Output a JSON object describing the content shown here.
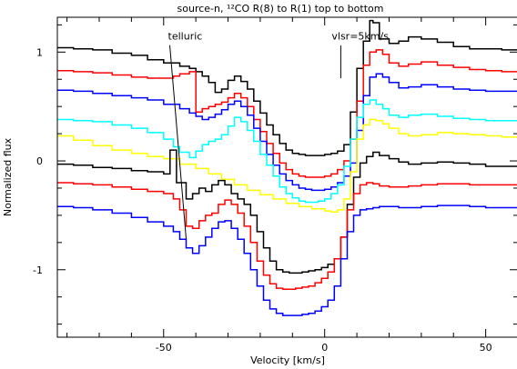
{
  "chart_data": {
    "type": "line",
    "title": "source-n, ¹²CO R(8) to R(1) top to bottom",
    "xlabel": "Velocity [km/s]",
    "ylabel": "Normalized flux",
    "xlim": [
      -83,
      60
    ],
    "ylim": [
      -1.62,
      1.32
    ],
    "x_ticks": [
      -50,
      0,
      50
    ],
    "y_ticks": [
      -1,
      0,
      1
    ],
    "grid": false,
    "legend": "none",
    "annotations": [
      {
        "text": "telluric",
        "x": -43,
        "y": 1.08,
        "arrow_to": [
          -43,
          -0.72
        ]
      },
      {
        "text": "vlsr=5km/s",
        "x": 5,
        "y": 1.08,
        "line_from_y": 1.06,
        "line_to_y": 0.76
      }
    ],
    "series": [
      {
        "color": "#000000",
        "x": [
          -83,
          -78,
          -72,
          -66,
          -60,
          -55,
          -50,
          -45,
          -42,
          -40,
          -38,
          -36,
          -34,
          -32,
          -30,
          -28,
          -26,
          -24,
          -22,
          -20,
          -18,
          -16,
          -14,
          -12,
          -10,
          -8,
          -6,
          -4,
          -2,
          0,
          2,
          4,
          6,
          8,
          10,
          12,
          14,
          15,
          17,
          20,
          23,
          26,
          30,
          35,
          40,
          45,
          50,
          55,
          60
        ],
        "y": [
          1.04,
          1.03,
          1.02,
          0.99,
          0.97,
          0.93,
          0.9,
          0.87,
          0.85,
          0.82,
          0.78,
          0.72,
          0.63,
          0.66,
          0.74,
          0.78,
          0.73,
          0.66,
          0.55,
          0.44,
          0.33,
          0.24,
          0.16,
          0.1,
          0.07,
          0.06,
          0.05,
          0.05,
          0.05,
          0.06,
          0.07,
          0.09,
          0.15,
          0.45,
          0.85,
          1.1,
          1.29,
          1.27,
          1.12,
          1.08,
          1.1,
          1.14,
          1.12,
          1.09,
          1.05,
          1.03,
          1.03,
          1.02,
          1.01
        ]
      },
      {
        "color": "#ff0000",
        "x": [
          -83,
          -78,
          -72,
          -66,
          -60,
          -55,
          -50,
          -47,
          -45,
          -42,
          -40,
          -38,
          -36,
          -34,
          -32,
          -30,
          -28,
          -26,
          -24,
          -22,
          -20,
          -18,
          -16,
          -14,
          -12,
          -10,
          -8,
          -6,
          -4,
          -2,
          0,
          2,
          4,
          6,
          8,
          10,
          12,
          14,
          16,
          18,
          20,
          23,
          26,
          30,
          35,
          40,
          45,
          50,
          55,
          60
        ],
        "y": [
          0.83,
          0.82,
          0.81,
          0.79,
          0.77,
          0.76,
          0.76,
          0.78,
          0.8,
          0.82,
          0.45,
          0.48,
          0.5,
          0.52,
          0.54,
          0.58,
          0.62,
          0.58,
          0.5,
          0.38,
          0.27,
          0.16,
          0.07,
          -0.02,
          -0.08,
          -0.12,
          -0.14,
          -0.15,
          -0.15,
          -0.15,
          -0.14,
          -0.12,
          -0.08,
          0.0,
          0.2,
          0.55,
          0.88,
          1.0,
          1.02,
          0.98,
          0.9,
          0.87,
          0.89,
          0.91,
          0.88,
          0.86,
          0.84,
          0.83,
          0.82,
          0.82
        ]
      },
      {
        "color": "#0000ff",
        "x": [
          -83,
          -78,
          -72,
          -66,
          -60,
          -55,
          -50,
          -45,
          -42,
          -40,
          -38,
          -36,
          -34,
          -32,
          -30,
          -28,
          -26,
          -24,
          -22,
          -20,
          -18,
          -16,
          -14,
          -12,
          -10,
          -8,
          -6,
          -4,
          -2,
          0,
          2,
          4,
          6,
          8,
          10,
          12,
          14,
          16,
          18,
          20,
          23,
          26,
          30,
          35,
          40,
          45,
          50,
          55,
          60
        ],
        "y": [
          0.65,
          0.64,
          0.62,
          0.6,
          0.58,
          0.56,
          0.52,
          0.48,
          0.44,
          0.41,
          0.38,
          0.4,
          0.43,
          0.47,
          0.52,
          0.55,
          0.5,
          0.42,
          0.3,
          0.18,
          0.06,
          -0.04,
          -0.12,
          -0.18,
          -0.22,
          -0.25,
          -0.26,
          -0.27,
          -0.27,
          -0.26,
          -0.24,
          -0.2,
          -0.14,
          -0.02,
          0.28,
          0.6,
          0.77,
          0.8,
          0.77,
          0.72,
          0.67,
          0.68,
          0.7,
          0.68,
          0.66,
          0.65,
          0.64,
          0.64,
          0.64
        ]
      },
      {
        "color": "#00ffff",
        "x": [
          -83,
          -78,
          -72,
          -66,
          -60,
          -55,
          -50,
          -47,
          -45,
          -42,
          -40,
          -38,
          -36,
          -34,
          -32,
          -30,
          -28,
          -26,
          -24,
          -22,
          -20,
          -18,
          -16,
          -14,
          -12,
          -10,
          -8,
          -6,
          -4,
          -2,
          0,
          2,
          4,
          6,
          8,
          10,
          12,
          14,
          16,
          18,
          20,
          23,
          26,
          30,
          35,
          40,
          45,
          50,
          55,
          60
        ],
        "y": [
          0.38,
          0.37,
          0.36,
          0.33,
          0.3,
          0.26,
          0.2,
          0.13,
          0.08,
          0.03,
          0.09,
          0.15,
          0.18,
          0.2,
          0.24,
          0.32,
          0.4,
          0.36,
          0.28,
          0.18,
          0.06,
          -0.04,
          -0.14,
          -0.24,
          -0.3,
          -0.34,
          -0.37,
          -0.38,
          -0.38,
          -0.37,
          -0.35,
          -0.3,
          -0.22,
          -0.05,
          0.2,
          0.4,
          0.52,
          0.56,
          0.52,
          0.48,
          0.42,
          0.4,
          0.42,
          0.43,
          0.41,
          0.39,
          0.38,
          0.37,
          0.37,
          0.37
        ]
      },
      {
        "color": "#ffff00",
        "x": [
          -83,
          -78,
          -72,
          -66,
          -60,
          -55,
          -50,
          -45,
          -40,
          -36,
          -32,
          -28,
          -24,
          -20,
          -16,
          -12,
          -8,
          -4,
          0,
          2,
          4,
          6,
          8,
          10,
          12,
          14,
          16,
          18,
          20,
          23,
          26,
          30,
          35,
          40,
          45,
          50,
          55,
          60
        ],
        "y": [
          0.23,
          0.19,
          0.14,
          0.1,
          0.07,
          0.04,
          0.02,
          -0.03,
          -0.07,
          -0.12,
          -0.17,
          -0.22,
          -0.27,
          -0.31,
          -0.35,
          -0.39,
          -0.42,
          -0.44,
          -0.46,
          -0.47,
          -0.45,
          -0.35,
          -0.1,
          0.2,
          0.33,
          0.38,
          0.37,
          0.34,
          0.3,
          0.25,
          0.23,
          0.24,
          0.26,
          0.25,
          0.24,
          0.23,
          0.22,
          0.22
        ]
      },
      {
        "color": "#000000",
        "x": [
          -83,
          -78,
          -72,
          -66,
          -60,
          -55,
          -50,
          -48,
          -46,
          -43,
          -41,
          -39,
          -37,
          -35,
          -33,
          -31,
          -29,
          -27,
          -25,
          -23,
          -21,
          -19,
          -17,
          -15,
          -13,
          -11,
          -9,
          -7,
          -5,
          -3,
          -1,
          1,
          3,
          5,
          7,
          9,
          11,
          13,
          15,
          17,
          20,
          23,
          26,
          30,
          35,
          40,
          45,
          50,
          55,
          60
        ],
        "y": [
          -0.03,
          -0.04,
          -0.06,
          -0.07,
          -0.09,
          -0.1,
          -0.12,
          0.1,
          -0.2,
          -0.35,
          -0.3,
          -0.25,
          -0.28,
          -0.22,
          -0.18,
          -0.22,
          -0.3,
          -0.35,
          -0.4,
          -0.5,
          -0.65,
          -0.8,
          -0.92,
          -1.0,
          -1.02,
          -1.03,
          -1.03,
          -1.02,
          -1.01,
          -1.0,
          -0.98,
          -0.95,
          -0.9,
          -0.7,
          -0.4,
          -0.15,
          -0.02,
          0.04,
          0.08,
          0.05,
          0.02,
          -0.01,
          -0.03,
          -0.02,
          -0.01,
          -0.02,
          -0.03,
          -0.05,
          -0.05,
          -0.06
        ]
      },
      {
        "color": "#ff0000",
        "x": [
          -83,
          -78,
          -72,
          -66,
          -60,
          -55,
          -50,
          -47,
          -45,
          -43,
          -41,
          -39,
          -37,
          -35,
          -33,
          -31,
          -29,
          -27,
          -25,
          -23,
          -21,
          -19,
          -17,
          -15,
          -13,
          -11,
          -9,
          -7,
          -5,
          -3,
          -1,
          1,
          3,
          5,
          7,
          9,
          11,
          13,
          15,
          17,
          20,
          23,
          26,
          30,
          35,
          40,
          45,
          50,
          55,
          60
        ],
        "y": [
          -0.2,
          -0.21,
          -0.22,
          -0.24,
          -0.26,
          -0.28,
          -0.3,
          -0.35,
          -0.45,
          -0.6,
          -0.62,
          -0.55,
          -0.5,
          -0.48,
          -0.4,
          -0.36,
          -0.4,
          -0.48,
          -0.6,
          -0.75,
          -0.92,
          -1.05,
          -1.13,
          -1.17,
          -1.18,
          -1.18,
          -1.17,
          -1.16,
          -1.15,
          -1.12,
          -1.08,
          -1.02,
          -0.9,
          -0.7,
          -0.45,
          -0.3,
          -0.22,
          -0.2,
          -0.21,
          -0.23,
          -0.24,
          -0.24,
          -0.23,
          -0.22,
          -0.21,
          -0.21,
          -0.22,
          -0.22,
          -0.22,
          -0.22
        ]
      },
      {
        "color": "#0000ff",
        "x": [
          -83,
          -78,
          -72,
          -66,
          -60,
          -55,
          -50,
          -47,
          -45,
          -43,
          -41,
          -39,
          -37,
          -35,
          -33,
          -31,
          -29,
          -27,
          -25,
          -23,
          -21,
          -19,
          -17,
          -15,
          -13,
          -11,
          -9,
          -7,
          -5,
          -3,
          -1,
          1,
          3,
          5,
          7,
          9,
          11,
          13,
          15,
          17,
          20,
          23,
          26,
          30,
          35,
          40,
          45,
          50,
          55,
          60
        ],
        "y": [
          -0.42,
          -0.43,
          -0.45,
          -0.48,
          -0.52,
          -0.56,
          -0.6,
          -0.65,
          -0.72,
          -0.8,
          -0.85,
          -0.78,
          -0.7,
          -0.62,
          -0.56,
          -0.55,
          -0.62,
          -0.72,
          -0.85,
          -1.0,
          -1.15,
          -1.28,
          -1.36,
          -1.4,
          -1.42,
          -1.42,
          -1.42,
          -1.41,
          -1.4,
          -1.38,
          -1.34,
          -1.28,
          -1.15,
          -0.9,
          -0.65,
          -0.5,
          -0.45,
          -0.44,
          -0.43,
          -0.42,
          -0.42,
          -0.43,
          -0.43,
          -0.42,
          -0.41,
          -0.41,
          -0.42,
          -0.43,
          -0.43,
          -0.43
        ]
      }
    ]
  }
}
